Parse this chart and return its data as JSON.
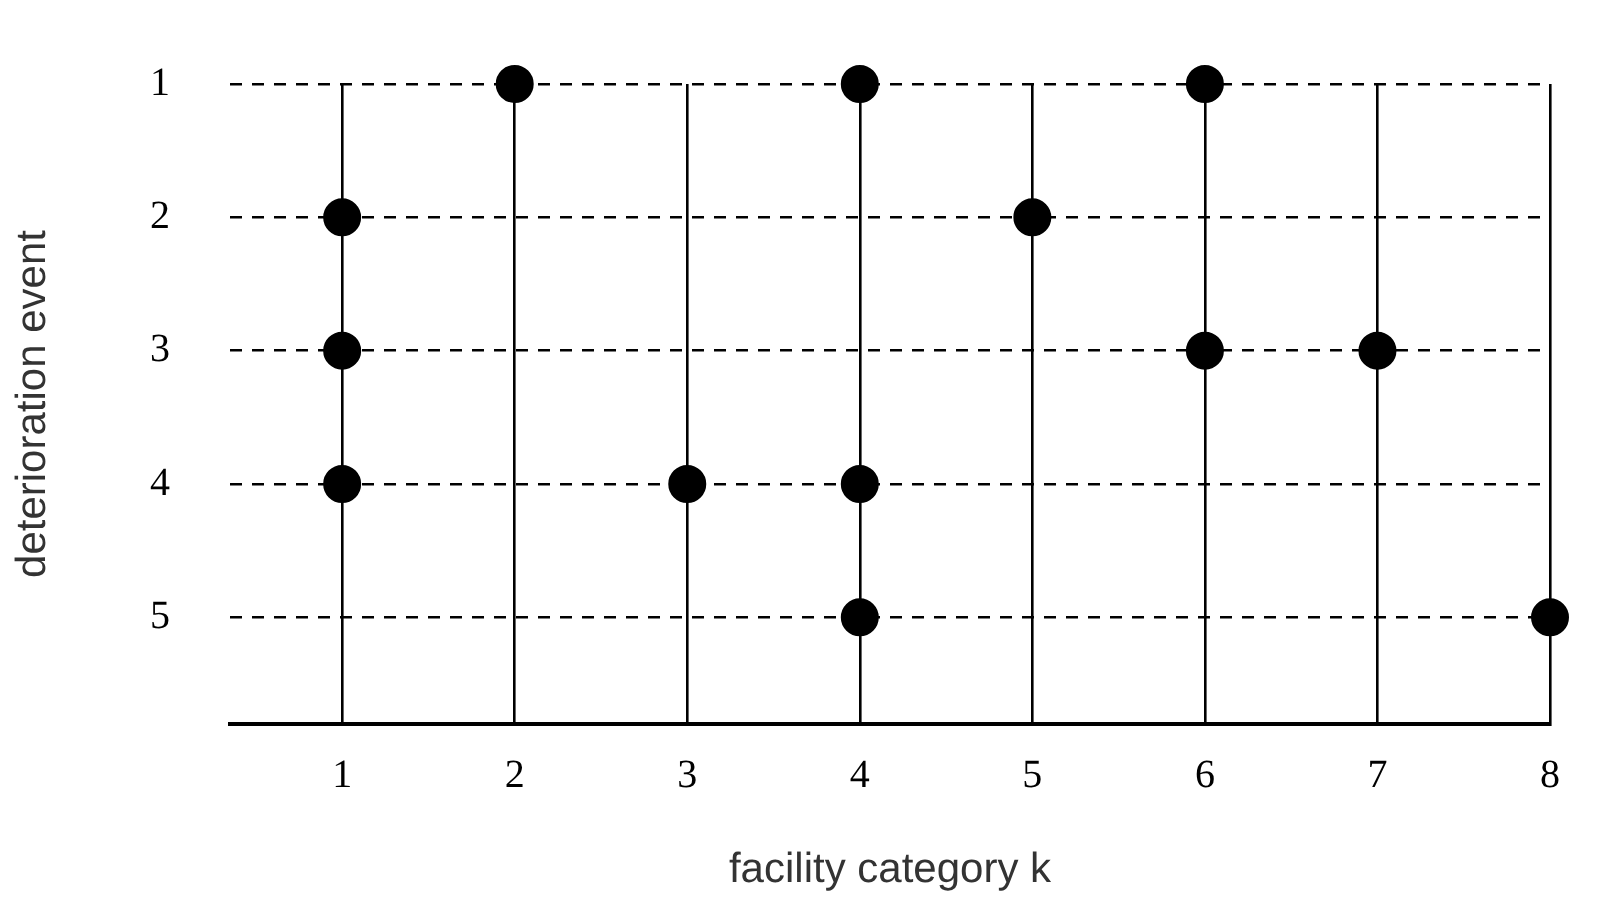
{
  "chart_data": {
    "type": "scatter",
    "xlabel": "facility category k",
    "ylabel": "deterioration event",
    "x": [
      2,
      4,
      6,
      1,
      5,
      1,
      6,
      7,
      1,
      3,
      4,
      4,
      8
    ],
    "values": [
      1,
      1,
      1,
      2,
      2,
      3,
      3,
      3,
      4,
      4,
      4,
      5,
      5
    ],
    "color": "#000000",
    "marker": "circle",
    "xlim": [
      0.35,
      8
    ],
    "xticks": [
      1,
      2,
      3,
      4,
      5,
      6,
      7,
      8
    ],
    "ylim": [
      5.8,
      1
    ],
    "yticks": [
      1,
      2,
      3,
      4,
      5
    ],
    "grid": true,
    "legend": false
  }
}
